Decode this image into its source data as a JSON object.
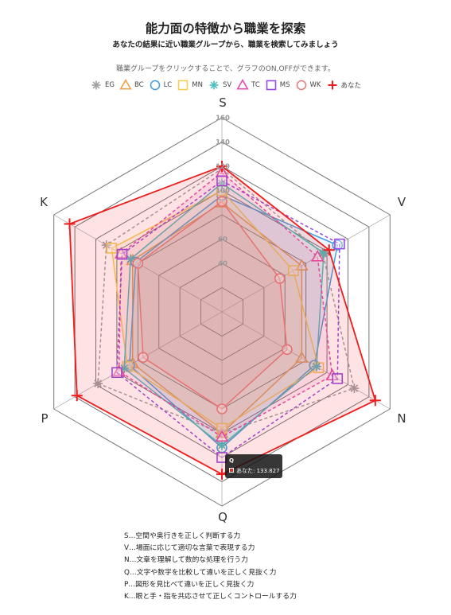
{
  "header": {
    "title": "能力面の特徴から職業を探索",
    "subtitle": "あなたの結果に近い職業グループから、職業を検索してみましょう",
    "hint": "職業グループをクリックすることで、グラフのON,OFFができます。"
  },
  "legend": [
    {
      "label": "EG",
      "color": "#a0a0a0",
      "marker": "star"
    },
    {
      "label": "BC",
      "color": "#f5a04a",
      "marker": "triangle"
    },
    {
      "label": "LC",
      "color": "#4a9ee0",
      "marker": "circle"
    },
    {
      "label": "MN",
      "color": "#f7cd5a",
      "marker": "square"
    },
    {
      "label": "SV",
      "color": "#4cc0c0",
      "marker": "star"
    },
    {
      "label": "TC",
      "color": "#e74cb0",
      "marker": "triangle"
    },
    {
      "label": "MS",
      "color": "#9a4ae0",
      "marker": "square"
    },
    {
      "label": "WK",
      "color": "#e58080",
      "marker": "circle"
    },
    {
      "label": "あなた",
      "color": "#ee1c1c",
      "marker": "cross"
    }
  ],
  "chart_data": {
    "type": "radar",
    "axes": [
      "S",
      "V",
      "N",
      "Q",
      "P",
      "K"
    ],
    "scale": {
      "min": 0,
      "max": 160,
      "ticks": [
        40,
        60,
        100,
        120,
        140,
        160
      ]
    },
    "series": [
      {
        "name": "EG",
        "color": "#a0a0a0",
        "values": [
          118,
          96,
          126,
          100,
          118,
          110
        ],
        "dashed": true,
        "fill": false
      },
      {
        "name": "BC",
        "color": "#f5a04a",
        "values": [
          90,
          76,
          76,
          100,
          85,
          85
        ],
        "dashed": false,
        "fill": true
      },
      {
        "name": "LC",
        "color": "#4a9ee0",
        "values": [
          96,
          110,
          88,
          112,
          88,
          82
        ],
        "dashed": false,
        "fill": true
      },
      {
        "name": "MN",
        "color": "#f7cd5a",
        "values": [
          100,
          68,
          92,
          96,
          90,
          105
        ],
        "dashed": false,
        "fill": true
      },
      {
        "name": "SV",
        "color": "#4cc0c0",
        "values": [
          106,
          97,
          90,
          110,
          93,
          87
        ],
        "dashed": false,
        "fill": true
      },
      {
        "name": "TC",
        "color": "#e74cb0",
        "values": [
          115,
          91,
          105,
          103,
          98,
          96
        ],
        "dashed": true,
        "fill": true
      },
      {
        "name": "MS",
        "color": "#9a4ae0",
        "values": [
          108,
          112,
          110,
          120,
          100,
          95
        ],
        "dashed": true,
        "fill": false
      },
      {
        "name": "WK",
        "color": "#e58080",
        "values": [
          91,
          55,
          62,
          80,
          75,
          80
        ],
        "dashed": false,
        "fill": true
      },
      {
        "name": "あなた",
        "color": "#ee1c1c",
        "values": [
          120,
          102,
          146,
          133.827,
          138,
          145
        ],
        "dashed": false,
        "fill": true
      }
    ]
  },
  "tooltip": {
    "title": "Q",
    "body": "あなた: 133.827"
  },
  "notes": [
    "S…空間や奥行きを正しく判断する力",
    "V…場面に応じて適切な言葉で表現する力",
    "N…文章を理解して数的な処理を行う力",
    "Q…文字や数字を比較して違いを正しく見抜く力",
    "P…図形を見比べて違いを正しく見抜く力",
    "K…眼と手・指を共応させて正しくコントロールする力"
  ]
}
